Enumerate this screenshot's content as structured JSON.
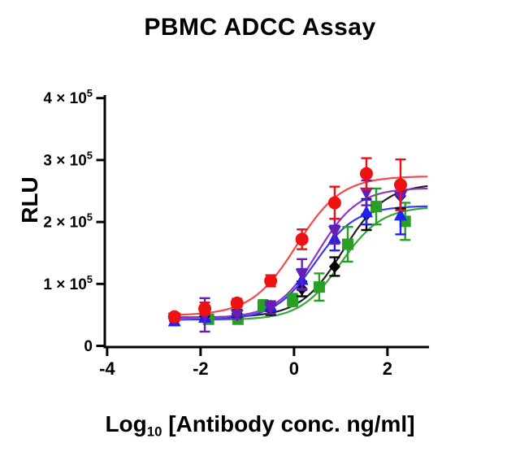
{
  "chart_data": {
    "type": "line",
    "title": "PBMC ADCC Assay",
    "xlabel": {
      "pre": "Log",
      "sub": "10",
      "post": "[Antibody conc. ng/ml]"
    },
    "ylabel": "RLU",
    "y_unit": "RLU",
    "xlim": [
      -4.05,
      2.89
    ],
    "ylim_1e5": [
      0,
      4.05
    ],
    "grid": false,
    "legend": "none",
    "x_ticks": [
      {
        "v": -4,
        "label": "-4"
      },
      {
        "v": -2,
        "label": "-2"
      },
      {
        "v": 0,
        "label": "0"
      },
      {
        "v": 2,
        "label": "2"
      }
    ],
    "y_ticks": [
      {
        "v": 0,
        "label": "0",
        "sup": ""
      },
      {
        "v": 1,
        "label": "1 × 10",
        "sup": "5"
      },
      {
        "v": 2,
        "label": "2 × 10",
        "sup": "5"
      },
      {
        "v": 3,
        "label": "3 × 10",
        "sup": "5"
      },
      {
        "v": 4,
        "label": "4 × 10",
        "sup": "5"
      }
    ],
    "value_scale_note": "y values and errors in units of 1e5 RLU",
    "series": [
      {
        "name": "green-squares",
        "marker": "square",
        "color": "#28a028",
        "curve_color": "#35a835",
        "points": [
          [
            -1.83,
            0.43,
            0.06
          ],
          [
            -1.2,
            0.43,
            0.06
          ],
          [
            -0.66,
            0.65,
            0.09
          ],
          [
            -0.03,
            0.74,
            0.1
          ],
          [
            0.54,
            0.95,
            0.22
          ],
          [
            1.15,
            1.64,
            0.28
          ],
          [
            1.76,
            2.25,
            0.29
          ],
          [
            2.38,
            2.01,
            0.3
          ]
        ],
        "fit": {
          "bottom": 0.42,
          "top": 2.25,
          "logec50": 1.0,
          "hill": 1.0
        },
        "curve_x": [
          -1.9,
          2.86
        ]
      },
      {
        "name": "black-diamonds",
        "marker": "diamond",
        "color": "#000000",
        "curve_color": "#222222",
        "points": [
          [
            -2.56,
            0.45,
            0.05
          ],
          [
            -1.91,
            0.48,
            0.06
          ],
          [
            -1.22,
            0.52,
            0.06
          ],
          [
            -0.5,
            0.58,
            0.08
          ],
          [
            0.17,
            0.92,
            0.12
          ],
          [
            0.87,
            1.28,
            0.15
          ],
          [
            1.55,
            2.12,
            0.25
          ],
          [
            2.28,
            2.42,
            0.2
          ]
        ],
        "fit": {
          "bottom": 0.46,
          "top": 2.62,
          "logec50": 1.05,
          "hill": 0.95
        },
        "curve_x": [
          -2.62,
          2.86
        ]
      },
      {
        "name": "blue-triangles-up",
        "marker": "triangle-up",
        "color": "#2020f0",
        "curve_color": "#3a3af2",
        "points": [
          [
            -2.56,
            0.4,
            0.06
          ],
          [
            -1.91,
            0.46,
            0.06
          ],
          [
            -1.22,
            0.55,
            0.07
          ],
          [
            -0.5,
            0.64,
            0.08
          ],
          [
            0.17,
            1.07,
            0.17
          ],
          [
            0.87,
            1.74,
            0.2
          ],
          [
            1.55,
            2.16,
            0.2
          ],
          [
            2.28,
            2.11,
            0.31
          ]
        ],
        "fit": {
          "bottom": 0.42,
          "top": 2.26,
          "logec50": 0.45,
          "hill": 1.0
        },
        "curve_x": [
          -2.62,
          2.86
        ]
      },
      {
        "name": "purple-triangles-down",
        "marker": "triangle-down",
        "color": "#6a1db4",
        "curve_color": "#9136c4",
        "points": [
          [
            -2.56,
            0.45,
            0.05
          ],
          [
            -1.91,
            0.5,
            0.27
          ],
          [
            -1.22,
            0.5,
            0.06
          ],
          [
            -0.5,
            0.62,
            0.1
          ],
          [
            0.17,
            1.16,
            0.24
          ],
          [
            0.87,
            1.85,
            0.2
          ],
          [
            1.55,
            2.47,
            0.2
          ],
          [
            2.28,
            2.41,
            0.22
          ]
        ],
        "fit": {
          "bottom": 0.45,
          "top": 2.55,
          "logec50": 0.5,
          "hill": 1.0
        },
        "curve_x": [
          -2.62,
          2.86
        ]
      },
      {
        "name": "red-circles",
        "marker": "circle",
        "color": "#ee1111",
        "curve_color": "#f24a4a",
        "points": [
          [
            -2.56,
            0.47,
            0.05
          ],
          [
            -1.91,
            0.6,
            0.1
          ],
          [
            -1.22,
            0.69,
            0.07
          ],
          [
            -0.5,
            1.05,
            0.09
          ],
          [
            0.17,
            1.72,
            0.16
          ],
          [
            0.87,
            2.31,
            0.26
          ],
          [
            1.55,
            2.78,
            0.25
          ],
          [
            2.28,
            2.6,
            0.41
          ]
        ],
        "fit": {
          "bottom": 0.49,
          "top": 2.74,
          "logec50": 0.05,
          "hill": 0.9
        },
        "curve_x": [
          -2.62,
          2.86
        ]
      }
    ]
  }
}
